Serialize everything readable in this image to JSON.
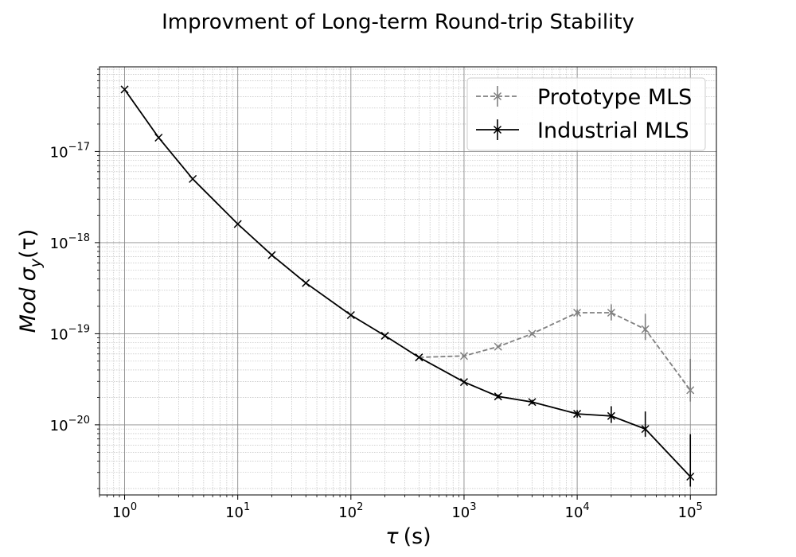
{
  "chart_data": {
    "type": "line",
    "title": "Improvment of Long-term Round-trip Stability",
    "xlabel": {
      "symbol": "τ",
      "unit": "(s)"
    },
    "ylabel": {
      "prefix": "Mod",
      "symbol": "σ",
      "subscript": "y",
      "arg": "(τ)"
    },
    "xscale": "log",
    "yscale": "log",
    "xlim": [
      0.6,
      170000
    ],
    "ylim": [
      1.7e-21,
      8.5e-17
    ],
    "grid": true,
    "legend_position": "top-right",
    "x_ticks": [
      {
        "value": 1,
        "label_base": "10",
        "label_exp": "0"
      },
      {
        "value": 10,
        "label_base": "10",
        "label_exp": "1"
      },
      {
        "value": 100,
        "label_base": "10",
        "label_exp": "2"
      },
      {
        "value": 1000,
        "label_base": "10",
        "label_exp": "3"
      },
      {
        "value": 10000,
        "label_base": "10",
        "label_exp": "4"
      },
      {
        "value": 100000,
        "label_base": "10",
        "label_exp": "5"
      }
    ],
    "y_ticks": [
      {
        "value": 1e-17,
        "label_base": "10",
        "label_exp": "−17"
      },
      {
        "value": 1e-18,
        "label_base": "10",
        "label_exp": "−18"
      },
      {
        "value": 1e-19,
        "label_base": "10",
        "label_exp": "−19"
      },
      {
        "value": 1e-20,
        "label_base": "10",
        "label_exp": "−20"
      }
    ],
    "series": [
      {
        "name": "Prototype MLS",
        "color": "#808080",
        "dash": true,
        "marker": "x",
        "x": [
          400,
          1000,
          2000,
          4000,
          10000,
          20000,
          40000,
          100000
        ],
        "y": [
          5.5e-20,
          5.7e-20,
          7.2e-20,
          1e-19,
          1.7e-19,
          1.7e-19,
          1.12e-19,
          2.4e-20
        ],
        "yerr_low": [
          5.5e-20,
          5.6e-20,
          7e-20,
          9.6e-20,
          1.55e-19,
          1.4e-19,
          8.5e-20,
          1.8e-20
        ],
        "yerr_high": [
          5.5e-20,
          5.8e-20,
          7.4e-20,
          1.04e-19,
          1.85e-19,
          2.1e-19,
          1.65e-19,
          5.3e-20
        ]
      },
      {
        "name": "Industrial MLS",
        "color": "#000000",
        "dash": false,
        "marker": "x",
        "x": [
          1,
          2,
          4,
          10,
          20,
          40,
          100,
          200,
          400,
          1000,
          2000,
          4000,
          10000,
          20000,
          40000,
          100000
        ],
        "y": [
          4.8e-17,
          1.42e-17,
          5e-18,
          1.6e-18,
          7.3e-19,
          3.6e-19,
          1.6e-19,
          9.5e-20,
          5.5e-20,
          2.95e-20,
          2.05e-20,
          1.78e-20,
          1.32e-20,
          1.25e-20,
          9e-21,
          2.7e-21
        ],
        "yerr_low": [
          4.8e-17,
          1.42e-17,
          5e-18,
          1.6e-18,
          7.3e-19,
          3.6e-19,
          1.6e-19,
          9.5e-20,
          5.5e-20,
          2.85e-20,
          1.95e-20,
          1.68e-20,
          1.2e-20,
          1.05e-20,
          7.4e-21,
          2.1e-21
        ],
        "yerr_high": [
          4.8e-17,
          1.42e-17,
          5e-18,
          1.6e-18,
          7.3e-19,
          3.6e-19,
          1.6e-19,
          9.5e-20,
          5.5e-20,
          3.05e-20,
          2.15e-20,
          1.88e-20,
          1.45e-20,
          1.6e-20,
          1.4e-20,
          7.9e-21
        ]
      }
    ]
  }
}
